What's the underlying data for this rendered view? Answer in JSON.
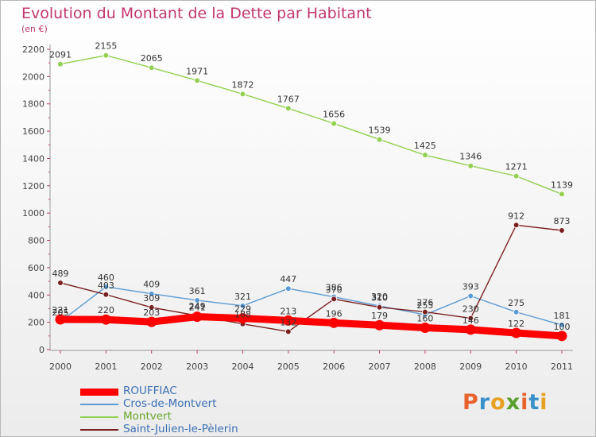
{
  "header": {
    "title": "Evolution du Montant de la Dette par Habitant",
    "subtitle": "(en €)"
  },
  "logo": {
    "text": "Proxiti",
    "letters": [
      "P",
      "r",
      "o",
      "x",
      "i",
      "t",
      "i"
    ],
    "colors": [
      "#e8622c",
      "#3a90c8",
      "#e8a020",
      "#5aa02c",
      "#e8622c",
      "#3a90c8",
      "#e8a020"
    ]
  },
  "chart_data": {
    "type": "line",
    "title": "Evolution du Montant de la Dette par Habitant",
    "subtitle": "(en €)",
    "x": [
      "2000",
      "2001",
      "2002",
      "2003",
      "2004",
      "2005",
      "2006",
      "2007",
      "2008",
      "2009",
      "2010",
      "2011"
    ],
    "ylim": [
      0,
      2200
    ],
    "yticks": [
      0,
      200,
      400,
      600,
      800,
      1000,
      1200,
      1400,
      1600,
      1800,
      2000,
      2200
    ],
    "grid": false,
    "legend_position": "bottom-left",
    "series": [
      {
        "name": "ROUFFIAC",
        "color": "#ff0000",
        "values": [
          221,
          220,
          203,
          241,
          229,
          213,
          196,
          179,
          160,
          146,
          122,
          100
        ]
      },
      {
        "name": "Cros-de-Montvert",
        "color": "#5b9bd5",
        "values": [
          205,
          460,
          409,
          361,
          321,
          447,
          386,
          320,
          255,
          393,
          275,
          181
        ]
      },
      {
        "name": "Montvert",
        "color": "#92d050",
        "values": [
          2091,
          2155,
          2065,
          1971,
          1872,
          1767,
          1656,
          1539,
          1425,
          1346,
          1271,
          1139
        ]
      },
      {
        "name": "Saint-Julien-le-Pèlerin",
        "color": "#7b2020",
        "values": [
          489,
          403,
          309,
          249,
          188,
          132,
          370,
          310,
          276,
          230,
          912,
          873
        ]
      }
    ]
  }
}
